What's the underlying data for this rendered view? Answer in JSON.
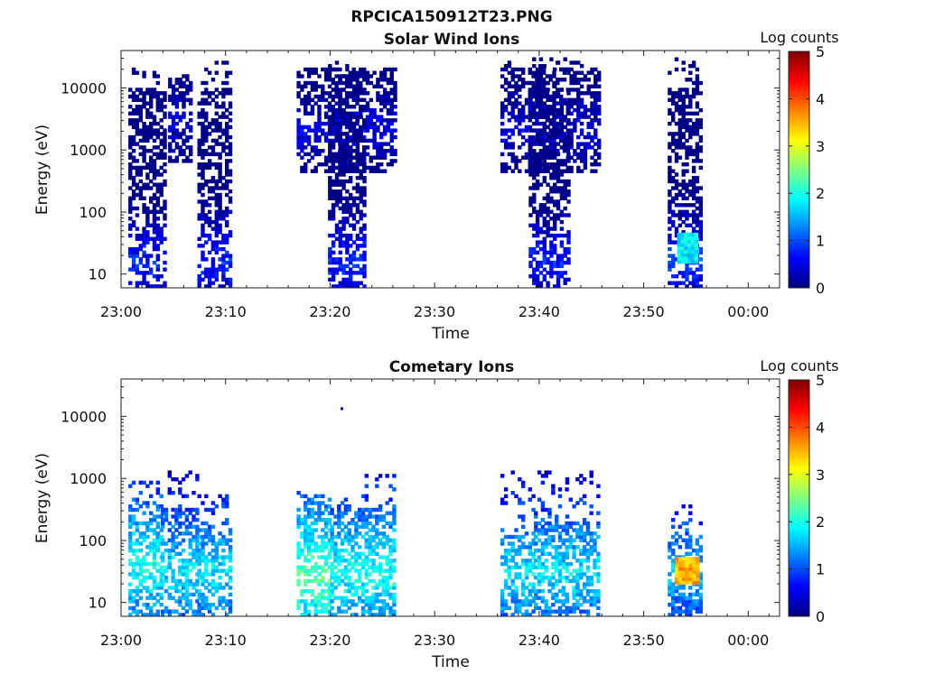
{
  "figure_title": "RPCICA150912T23.PNG",
  "colorbar_label": "Log counts",
  "colormap": [
    "#00007f",
    "#0000ff",
    "#0080ff",
    "#00ffff",
    "#80ff80",
    "#ffff00",
    "#ff8000",
    "#ff0000",
    "#7f0000"
  ],
  "chart_data": [
    {
      "type": "heatmap",
      "title": "Solar Wind Ions",
      "xlabel": "Time",
      "ylabel": "Energy (eV)",
      "x_ticks": [
        "23:00",
        "23:10",
        "23:20",
        "23:30",
        "23:40",
        "23:50",
        "00:00"
      ],
      "xlim_minutes": [
        0,
        63
      ],
      "y_scale": "log",
      "y_ticks": [
        10,
        100,
        1000,
        10000
      ],
      "y_tick_labels": [
        "10",
        "100",
        "1000",
        "10000"
      ],
      "ylim": [
        6,
        40000
      ],
      "colorbar": {
        "label": "Log counts",
        "range": [
          0,
          5
        ],
        "ticks": [
          "0",
          "1",
          "2",
          "3",
          "4",
          "5"
        ]
      },
      "bursts": [
        {
          "t0": 0.7,
          "t1": 4.2,
          "emin": 6,
          "emax": 20000,
          "dense_max": 9000,
          "peak": 0.8,
          "peak_e": 15
        },
        {
          "t0": 4.5,
          "t1": 6.5,
          "emin": 600,
          "emax": 16000,
          "dense_max": 15000,
          "peak": 0.5,
          "peak_e": 3000
        },
        {
          "t0": 7.3,
          "t1": 10.5,
          "emin": 6,
          "emax": 25000,
          "dense_max": 9000,
          "peak": 0.8,
          "peak_e": 15
        },
        {
          "t0": 16.8,
          "t1": 26.2,
          "emin": 400,
          "emax": 20000,
          "dense_max": 20000,
          "peak": 0.5,
          "peak_e": 2000
        },
        {
          "t0": 19.8,
          "t1": 23.3,
          "emin": 6,
          "emax": 30000,
          "dense_max": 9000,
          "peak": 0.8,
          "peak_e": 15
        },
        {
          "t0": 36.3,
          "t1": 45.7,
          "emin": 400,
          "emax": 25000,
          "dense_max": 20000,
          "peak": 0.5,
          "peak_e": 2000
        },
        {
          "t0": 39.0,
          "t1": 42.8,
          "emin": 6,
          "emax": 30000,
          "dense_max": 9000,
          "peak": 0.8,
          "peak_e": 15
        },
        {
          "t0": 52.3,
          "t1": 55.5,
          "emin": 6,
          "emax": 30000,
          "dense_max": 9000,
          "peak": 0.9,
          "peak_e": 15
        }
      ],
      "hotspots": [
        {
          "t0": 53.2,
          "t1": 55.0,
          "e0": 15,
          "e1": 45,
          "value": 1.8
        }
      ]
    },
    {
      "type": "heatmap",
      "title": "Cometary Ions",
      "xlabel": "Time",
      "ylabel": "Energy (eV)",
      "x_ticks": [
        "23:00",
        "23:10",
        "23:20",
        "23:30",
        "23:40",
        "23:50",
        "00:00"
      ],
      "xlim_minutes": [
        0,
        63
      ],
      "y_scale": "log",
      "y_ticks": [
        10,
        100,
        1000,
        10000
      ],
      "y_tick_labels": [
        "10",
        "100",
        "1000",
        "10000"
      ],
      "ylim": [
        6,
        40000
      ],
      "colorbar": {
        "label": "Log counts",
        "range": [
          0,
          5
        ],
        "ticks": [
          "0",
          "1",
          "2",
          "3",
          "4",
          "5"
        ]
      },
      "bursts": [
        {
          "t0": 0.7,
          "t1": 3.8,
          "emin": 6,
          "emax": 900,
          "dense_max": 400,
          "peak": 2.0,
          "peak_e": 40
        },
        {
          "t0": 3.8,
          "t1": 7.3,
          "emin": 6,
          "emax": 1300,
          "dense_max": 300,
          "peak": 1.8,
          "peak_e": 30
        },
        {
          "t0": 7.3,
          "t1": 10.5,
          "emin": 6,
          "emax": 500,
          "dense_max": 150,
          "peak": 1.8,
          "peak_e": 30
        },
        {
          "t0": 16.8,
          "t1": 20.0,
          "emin": 6,
          "emax": 600,
          "dense_max": 500,
          "peak": 2.3,
          "peak_e": 25
        },
        {
          "t0": 20.0,
          "t1": 23.3,
          "emin": 6,
          "emax": 500,
          "dense_max": 300,
          "peak": 2.0,
          "peak_e": 30
        },
        {
          "t0": 23.3,
          "t1": 26.2,
          "emin": 6,
          "emax": 1200,
          "dense_max": 300,
          "peak": 2.0,
          "peak_e": 30
        },
        {
          "t0": 36.3,
          "t1": 39.5,
          "emin": 6,
          "emax": 1200,
          "dense_max": 150,
          "peak": 1.8,
          "peak_e": 30
        },
        {
          "t0": 39.5,
          "t1": 42.5,
          "emin": 6,
          "emax": 1200,
          "dense_max": 200,
          "peak": 1.8,
          "peak_e": 30
        },
        {
          "t0": 42.5,
          "t1": 45.7,
          "emin": 6,
          "emax": 1300,
          "dense_max": 200,
          "peak": 1.8,
          "peak_e": 30
        },
        {
          "t0": 52.3,
          "t1": 55.5,
          "emin": 6,
          "emax": 350,
          "dense_max": 120,
          "peak": 1.6,
          "peak_e": 30
        }
      ],
      "hotspots": [
        {
          "t0": 53.0,
          "t1": 55.2,
          "e0": 20,
          "e1": 50,
          "value": 3.5
        }
      ],
      "outliers": [
        {
          "t": 21.0,
          "e": 14000,
          "value": 0.2
        }
      ]
    }
  ]
}
